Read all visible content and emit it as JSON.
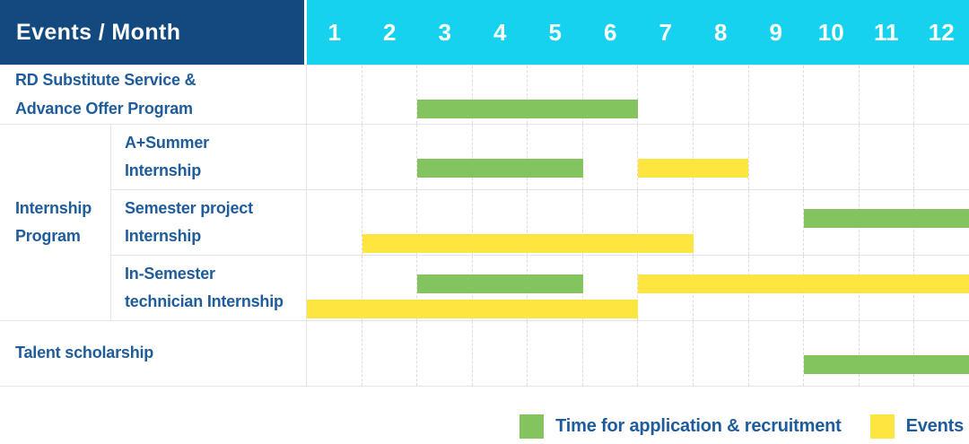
{
  "header": {
    "corner_label": "Events / Month",
    "months": [
      "1",
      "2",
      "3",
      "4",
      "5",
      "6",
      "7",
      "8",
      "9",
      "10",
      "11",
      "12"
    ]
  },
  "labels": {
    "rd_program": "RD Substitute Service &\nAdvance Offer Program",
    "internship_group": "Internship\nProgram",
    "a_summer": "A+Summer\nInternship",
    "semester_project": "Semester project\nInternship",
    "in_semester": "In-Semester\ntechnician Internship",
    "talent": "Talent scholarship"
  },
  "legend": [
    {
      "label": "Time for application & recruitment",
      "color": "#84C45F"
    },
    {
      "label": "Events",
      "color": "#FFE53F"
    }
  ],
  "colors": {
    "header_bg": "#12497E",
    "months_bg": "#17D2EE",
    "label_text": "#1E5C9B",
    "green": "#84C45F",
    "yellow": "#FFE53F",
    "grid_line": "#E4E4E4"
  },
  "chart_data": {
    "type": "bar",
    "subtype": "gantt-timeline-table",
    "title": "Events / Month",
    "x_axis": {
      "label": "Month",
      "ticks": [
        1,
        2,
        3,
        4,
        5,
        6,
        7,
        8,
        9,
        10,
        11,
        12
      ],
      "range": [
        1,
        12
      ]
    },
    "legend_entries": [
      "Time for application & recruitment",
      "Events"
    ],
    "tasks": [
      {
        "row": "RD Substitute Service & Advance Offer Program",
        "bars": [
          {
            "series": "Time for application & recruitment",
            "start_month": 3,
            "end_month": 6,
            "lane": "mid"
          }
        ]
      },
      {
        "row": "Internship Program - A+Summer Internship",
        "bars": [
          {
            "series": "Time for application & recruitment",
            "start_month": 3,
            "end_month": 5,
            "lane": "mid"
          },
          {
            "series": "Events",
            "start_month": 7,
            "end_month": 8,
            "lane": "mid"
          }
        ]
      },
      {
        "row": "Internship Program - Semester project Internship",
        "bars": [
          {
            "series": "Time for application & recruitment",
            "start_month": 10,
            "end_month": 12,
            "lane": "top"
          },
          {
            "series": "Events",
            "start_month": 2,
            "end_month": 7,
            "lane": "bottom"
          }
        ]
      },
      {
        "row": "Internship Program - In-Semester technician Internship",
        "bars": [
          {
            "series": "Time for application & recruitment",
            "start_month": 3,
            "end_month": 5,
            "lane": "top"
          },
          {
            "series": "Events",
            "start_month": 7,
            "end_month": 12,
            "lane": "top"
          },
          {
            "series": "Events",
            "start_month": 1,
            "end_month": 6,
            "lane": "bottom"
          }
        ]
      },
      {
        "row": "Talent scholarship",
        "bars": [
          {
            "series": "Time for application & recruitment",
            "start_month": 10,
            "end_month": 12,
            "lane": "mid"
          }
        ]
      }
    ]
  }
}
